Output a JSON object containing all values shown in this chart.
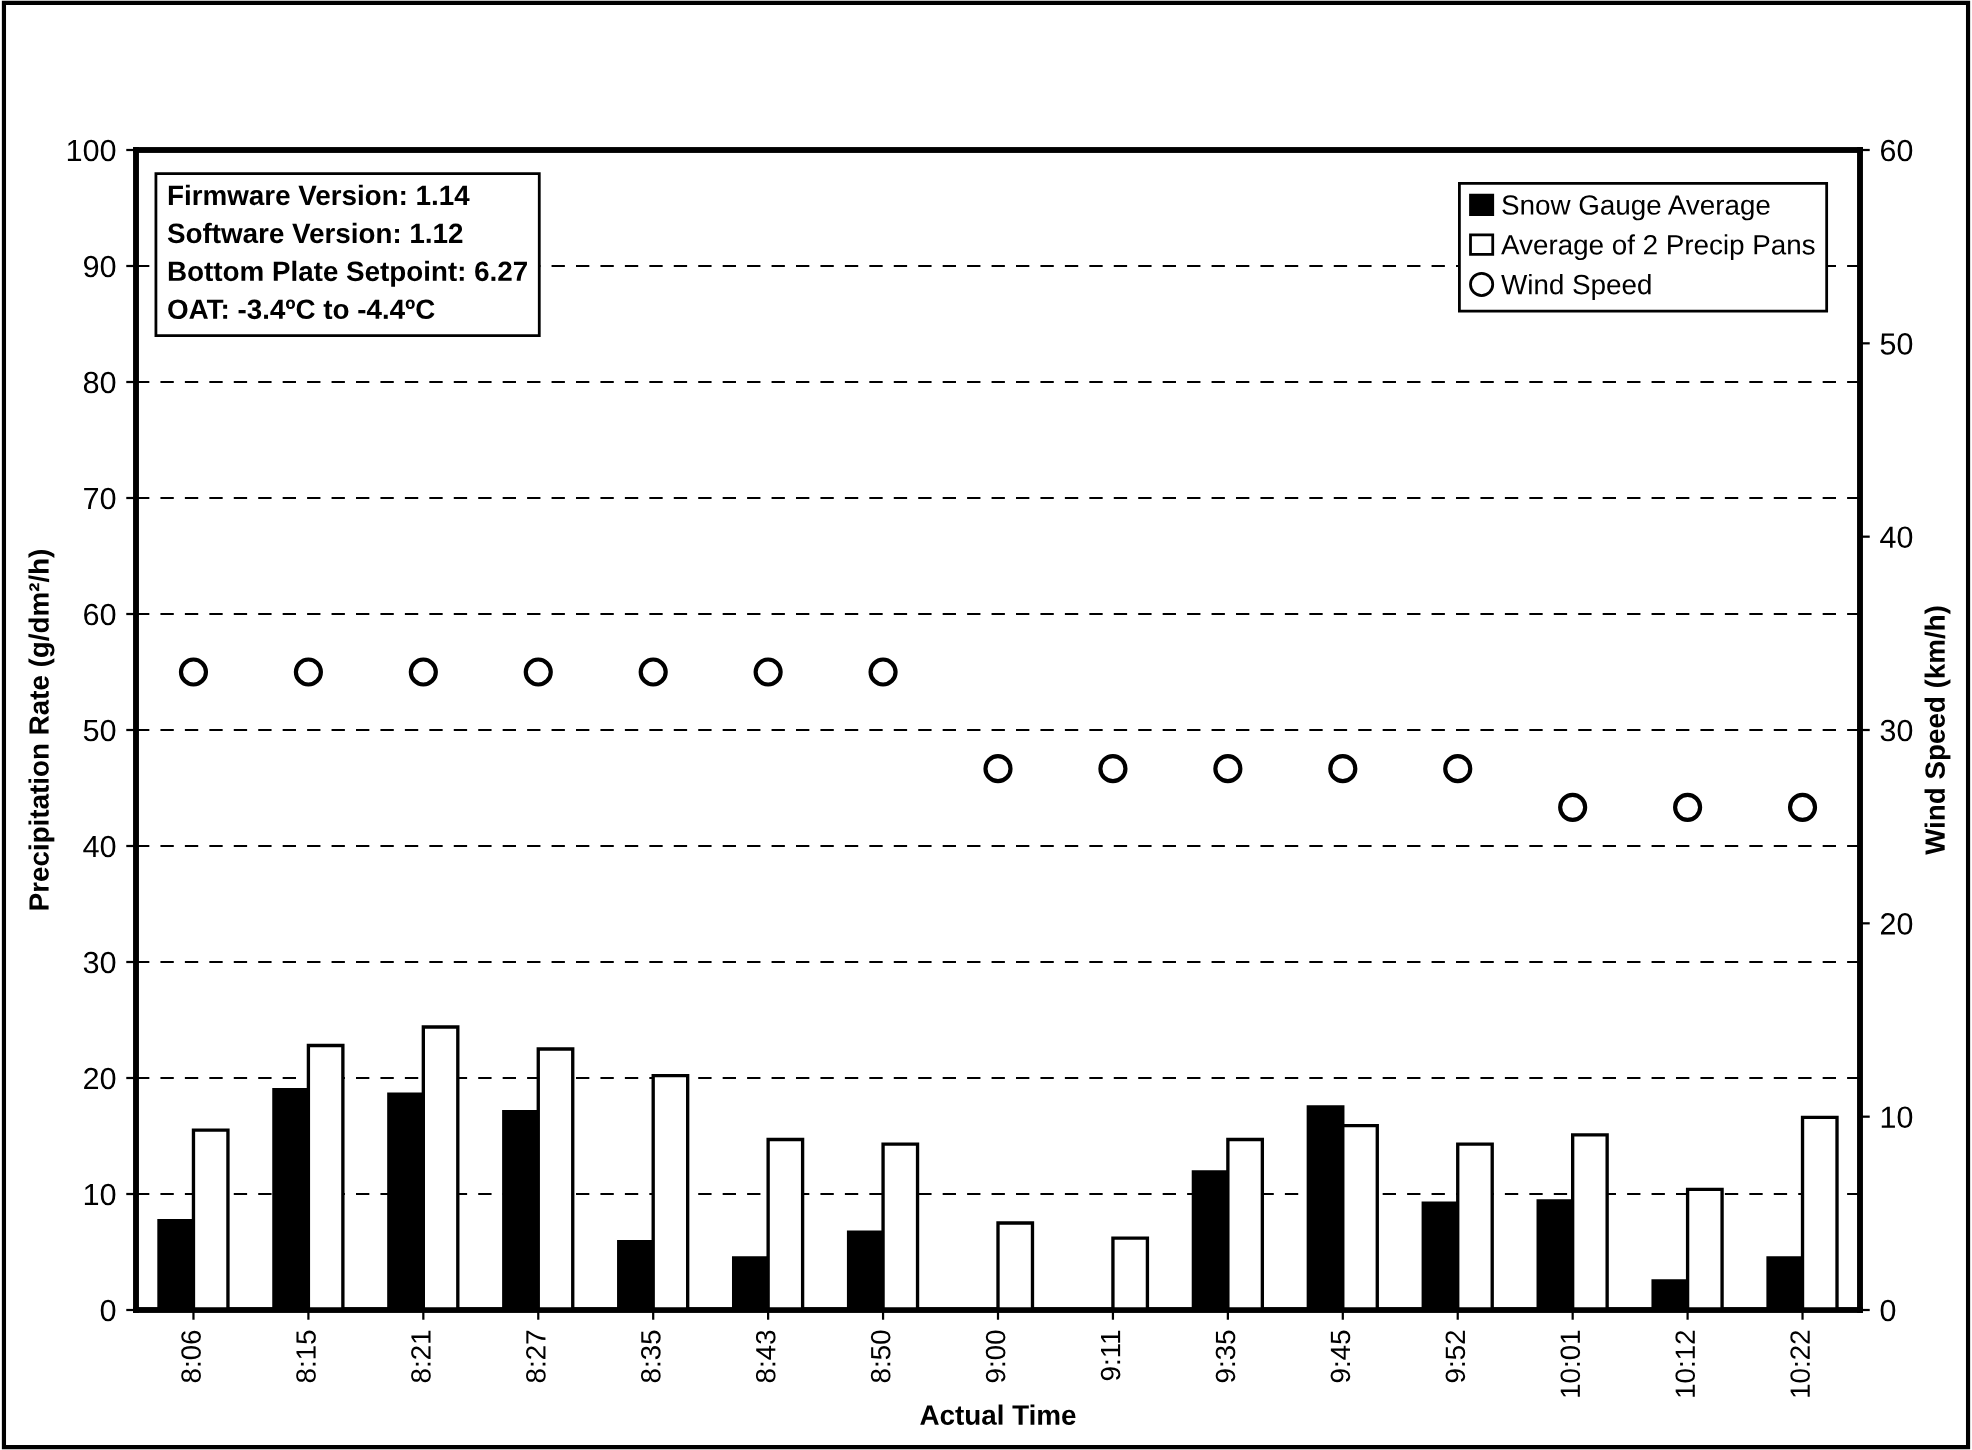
{
  "chart_data": {
    "type": "bar",
    "xlabel": "Actual Time",
    "ylabel": "Precipitation Rate (g/dm²/h)",
    "y2label": "Wind Speed (km/h)",
    "categories": [
      "8:06",
      "8:15",
      "8:21",
      "8:27",
      "8:35",
      "8:43",
      "8:50",
      "9:00",
      "9:11",
      "9:35",
      "9:45",
      "9:52",
      "10:01",
      "10:12",
      "10:22"
    ],
    "series": [
      {
        "name": "Snow Gauge Average",
        "color": "#000000",
        "values": [
          7.7,
          19.0,
          18.6,
          17.1,
          5.9,
          4.5,
          6.7,
          0,
          0,
          11.9,
          17.5,
          9.2,
          9.4,
          2.5,
          4.5
        ]
      },
      {
        "name": "Average of 2 Precip Pans",
        "color": "#ffffff",
        "values": [
          15.5,
          22.8,
          24.4,
          22.5,
          20.2,
          14.7,
          14.3,
          7.5,
          6.2,
          14.7,
          15.9,
          14.3,
          15.1,
          10.4,
          16.6
        ]
      },
      {
        "name": "Wind Speed",
        "type": "scatter",
        "axis": "y2",
        "color": "#ffffff",
        "marker": "circle",
        "values": [
          33,
          33,
          33,
          33,
          33,
          33,
          33,
          28,
          28,
          28,
          28,
          28,
          26,
          26,
          26
        ]
      }
    ],
    "ylim": [
      0,
      100
    ],
    "yticks": [
      0,
      10,
      20,
      30,
      40,
      50,
      60,
      70,
      80,
      90,
      100
    ],
    "y2lim": [
      0,
      60
    ],
    "y2ticks": [
      0,
      10,
      20,
      30,
      40,
      50,
      60
    ],
    "grid": "y",
    "line_style": "dashed",
    "legend": "top right",
    "annotations": [
      "Firmware Version: 1.14\nSoftware Version: 1.12\nBottom Plate Setpoint: 6.27\nOAT: -3.4ºC to -4.4ºC"
    ]
  }
}
